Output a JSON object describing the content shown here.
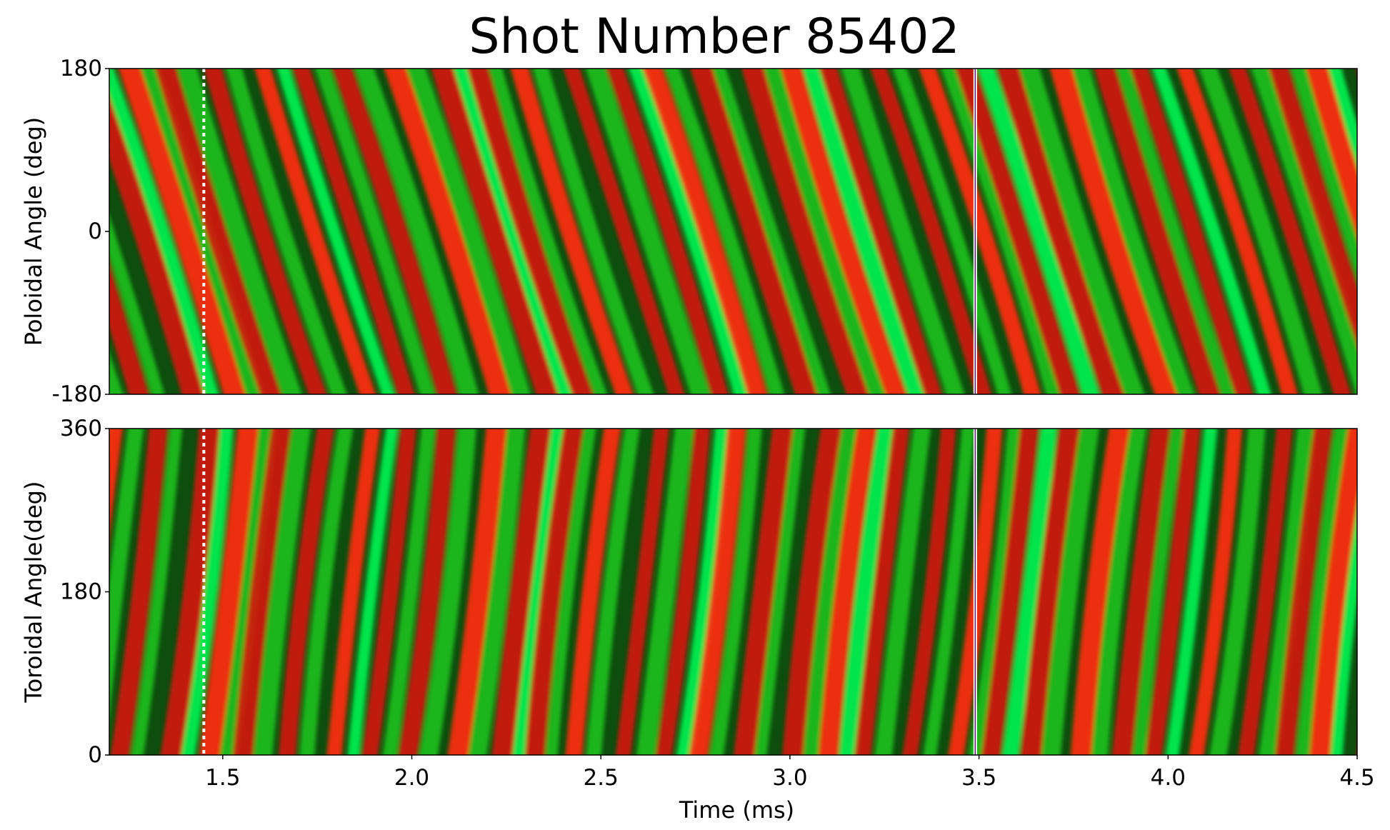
{
  "chart_data": [
    {
      "type": "heatmap",
      "title": "Shot Number 85402",
      "xlabel": "",
      "ylabel": "Poloidal Angle (deg)",
      "xlim": [
        1.2,
        4.5
      ],
      "ylim": [
        -180,
        180
      ],
      "yticks": [
        -180,
        0,
        180
      ],
      "ytick_labels": [
        "-180",
        "0",
        "180"
      ],
      "colors": {
        "negative": "#7a0000",
        "peak_red": "#ff2a10",
        "positive": "#1ec81e",
        "peak_green": "#00ff55",
        "neutral": "#0d4d0d"
      },
      "pattern": "diagonal stripes rising toward later times",
      "markers": [
        {
          "kind": "dotted-line",
          "color": "#ffffff",
          "x": 1.45
        },
        {
          "kind": "solid-line",
          "color": "#ffffff",
          "x": 3.49
        }
      ]
    },
    {
      "type": "heatmap",
      "xlabel": "Time (ms)",
      "ylabel": "Toroidal Angle(deg)",
      "xlim": [
        1.2,
        4.5
      ],
      "ylim": [
        0,
        360
      ],
      "xticks": [
        1.5,
        2.0,
        2.5,
        3.0,
        3.5,
        4.0,
        4.5
      ],
      "xtick_labels": [
        "1.5",
        "2.0",
        "2.5",
        "3.0",
        "3.5",
        "4.0",
        "4.5"
      ],
      "yticks": [
        0,
        180,
        360
      ],
      "ytick_labels": [
        "0",
        "180",
        "360"
      ],
      "colors": {
        "negative": "#7a0000",
        "peak_red": "#ff2a10",
        "positive": "#1ec81e",
        "peak_green": "#00ff55",
        "neutral": "#0d4d0d"
      },
      "pattern": "near-vertical stripes tilting backward",
      "markers": [
        {
          "kind": "dotted-line",
          "color": "#ffffff",
          "x": 1.45
        },
        {
          "kind": "solid-line",
          "color": "#ffffff",
          "x": 3.49
        }
      ]
    }
  ]
}
